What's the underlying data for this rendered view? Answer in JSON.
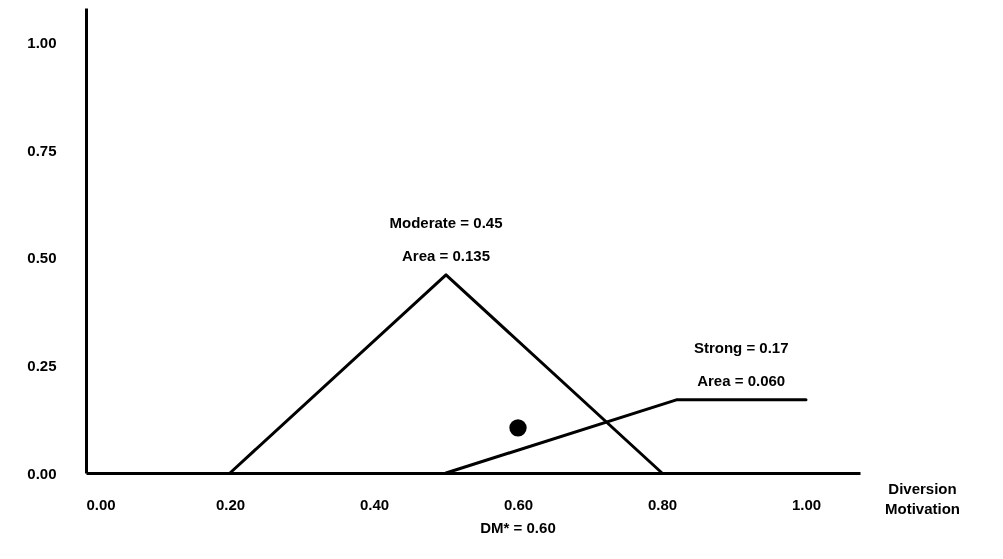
{
  "chart_data": {
    "type": "line",
    "xlabel": "Diversion Motivation",
    "xlim": [
      0,
      1.075
    ],
    "ylim": [
      0,
      1.08
    ],
    "xticks": [
      {
        "value": 0,
        "label": "0.00"
      },
      {
        "value": 0.2,
        "label": "0.20"
      },
      {
        "value": 0.4,
        "label": "0.40"
      },
      {
        "value": 0.6,
        "label": "0.60"
      },
      {
        "value": 0.8,
        "label": "0.80"
      },
      {
        "value": 1,
        "label": "1.00"
      }
    ],
    "yticks": [
      {
        "value": 0,
        "label": "0.00"
      },
      {
        "value": 0.25,
        "label": "0.25"
      },
      {
        "value": 0.5,
        "label": "0.50"
      },
      {
        "value": 0.75,
        "label": "0.75"
      },
      {
        "value": 1,
        "label": "1.00"
      }
    ],
    "grid": false,
    "line_style": "solid",
    "series": [
      {
        "color": "#000000",
        "x": [
          0.2,
          0.5,
          0.8
        ],
        "values": [
          0,
          0.46,
          0
        ]
      },
      {
        "color": "#000000",
        "x": [
          0.5,
          0.82,
          1.0
        ],
        "values": [
          0,
          0.17,
          0.17
        ]
      },
      {
        "type": "scatter",
        "color": "#000000",
        "marker": "circle",
        "x": [
          0.6
        ],
        "values": [
          0.105
        ]
      }
    ],
    "annotations": [
      "Moderate = 0.45",
      "Area = 0.135",
      "Strong = 0.17",
      "Area = 0.060",
      "DM* = 0.60"
    ]
  }
}
